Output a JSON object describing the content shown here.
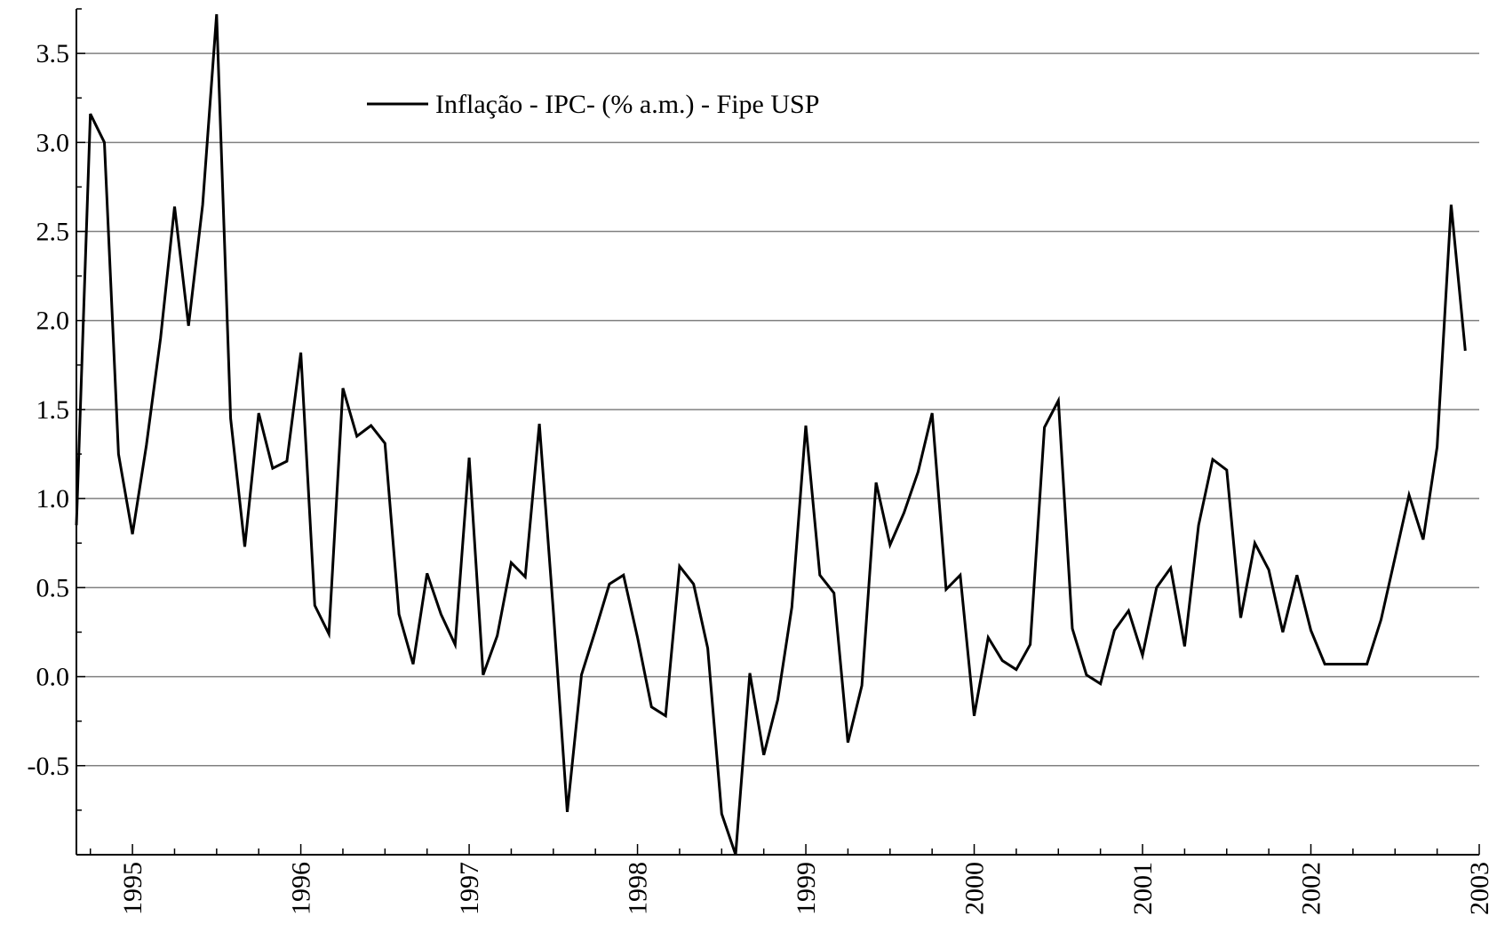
{
  "chart_data": {
    "type": "line",
    "title": "",
    "xlabel": "",
    "ylabel": "",
    "xlim": [
      1994.667,
      2003.0
    ],
    "ylim": [
      -1.0,
      3.75
    ],
    "grid": true,
    "legend_position": "top-left",
    "yticks": [
      -0.5,
      0.0,
      0.5,
      1.0,
      1.5,
      2.0,
      2.5,
      3.0,
      3.5
    ],
    "ytick_labels": [
      "-0.5",
      "0.0",
      "0.5",
      "1.0",
      "1.5",
      "2.0",
      "2.5",
      "3.0",
      "3.5"
    ],
    "xticks": [
      1995,
      1996,
      1997,
      1998,
      1999,
      2000,
      2001,
      2002,
      2003
    ],
    "xtick_labels": [
      "1995",
      "1996",
      "1997",
      "1998",
      "1999",
      "2000",
      "2001",
      "2002",
      "2003"
    ],
    "x": [
      1994.667,
      1994.75,
      1994.833,
      1994.917,
      1995.0,
      1995.083,
      1995.167,
      1995.25,
      1995.333,
      1995.417,
      1995.5,
      1995.583,
      1995.667,
      1995.75,
      1995.833,
      1995.917,
      1996.0,
      1996.083,
      1996.167,
      1996.25,
      1996.333,
      1996.417,
      1996.5,
      1996.583,
      1996.667,
      1996.75,
      1996.833,
      1996.917,
      1997.0,
      1997.083,
      1997.167,
      1997.25,
      1997.333,
      1997.417,
      1997.5,
      1997.583,
      1997.667,
      1997.75,
      1997.833,
      1997.917,
      1998.0,
      1998.083,
      1998.167,
      1998.25,
      1998.333,
      1998.417,
      1998.5,
      1998.583,
      1998.667,
      1998.75,
      1998.833,
      1998.917,
      1999.0,
      1999.083,
      1999.167,
      1999.25,
      1999.333,
      1999.417,
      1999.5,
      1999.583,
      1999.667,
      1999.75,
      1999.833,
      1999.917,
      2000.0,
      2000.083,
      2000.167,
      2000.25,
      2000.333,
      2000.417,
      2000.5,
      2000.583,
      2000.667,
      2000.75,
      2000.833,
      2000.917,
      2001.0,
      2001.083,
      2001.167,
      2001.25,
      2001.333,
      2001.417,
      2001.5,
      2001.583,
      2001.667,
      2001.75,
      2001.833,
      2001.917,
      2002.0,
      2002.083,
      2002.167,
      2002.25,
      2002.333,
      2002.417,
      2002.5,
      2002.583,
      2002.667,
      2002.75,
      2002.833,
      2002.917
    ],
    "series": [
      {
        "name": "Inflação - IPC- (% a.m.) - Fipe USP",
        "color": "#000000",
        "values": [
          0.85,
          3.16,
          3.0,
          1.25,
          0.8,
          1.3,
          1.9,
          2.64,
          1.97,
          2.65,
          3.72,
          1.45,
          0.73,
          1.48,
          1.17,
          1.21,
          1.82,
          0.4,
          0.24,
          1.62,
          1.35,
          1.41,
          1.31,
          0.35,
          0.07,
          0.58,
          0.35,
          0.18,
          1.23,
          0.01,
          0.23,
          0.64,
          0.56,
          1.42,
          0.37,
          -0.76,
          0.01,
          0.26,
          0.52,
          0.57,
          0.22,
          -0.17,
          -0.22,
          0.62,
          0.52,
          0.16,
          -0.77,
          -1.0,
          0.02,
          -0.44,
          -0.13,
          0.39,
          1.41,
          0.57,
          0.47,
          -0.37,
          -0.05,
          1.09,
          0.74,
          0.92,
          1.15,
          1.48,
          0.49,
          0.57,
          -0.22,
          0.22,
          0.09,
          0.04,
          0.18,
          1.4,
          1.55,
          0.27,
          0.01,
          -0.04,
          0.26,
          0.37,
          0.12,
          0.5,
          0.61,
          0.17,
          0.85,
          1.22,
          1.16,
          0.33,
          0.75,
          0.6,
          0.25,
          0.57,
          0.26,
          0.07,
          0.07,
          0.07,
          0.07,
          0.32,
          0.67,
          1.02,
          0.77,
          1.29,
          2.65,
          1.83
        ]
      }
    ]
  }
}
